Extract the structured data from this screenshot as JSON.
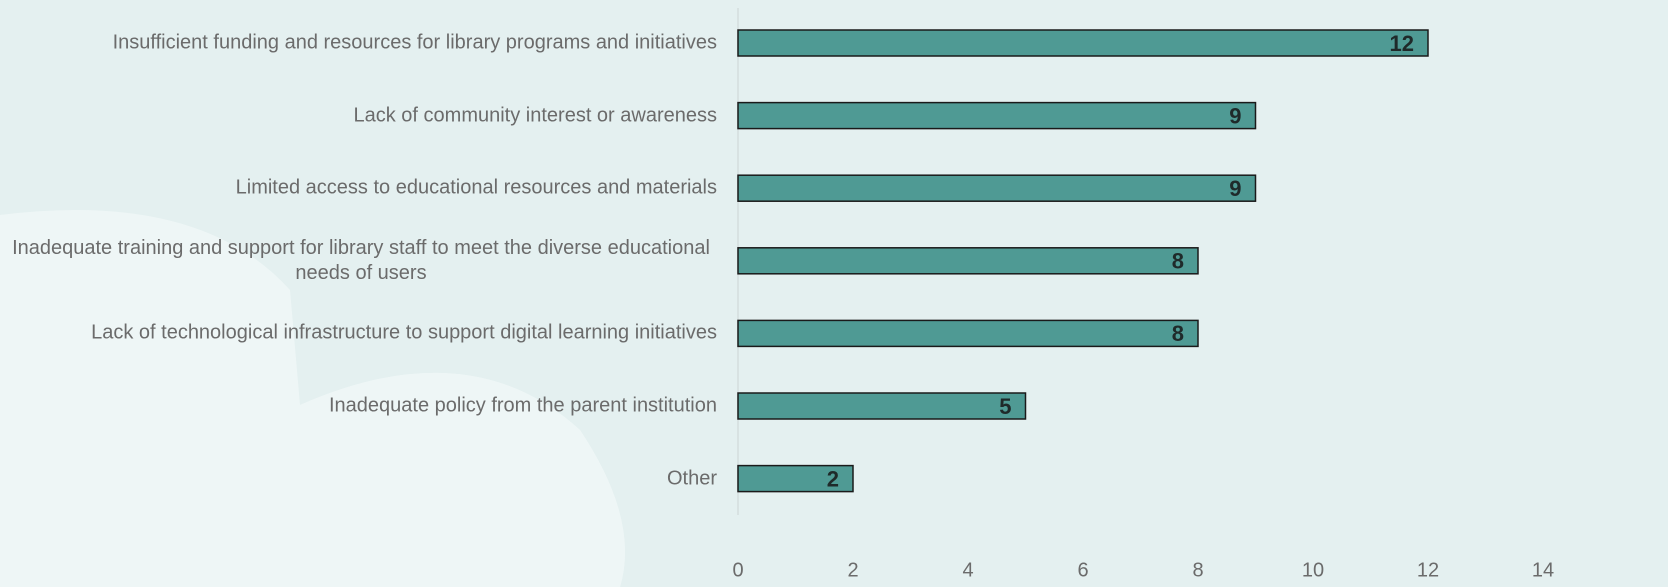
{
  "chart_data": {
    "type": "barh",
    "categories": [
      "Insufficient funding and resources for library programs and initiatives",
      "Lack of community interest or awareness",
      "Limited access to educational resources and materials",
      "Inadequate training and support for library staff to meet the diverse educational needs of users",
      "Lack of technological infrastructure to support digital learning initiatives",
      "Inadequate policy from the parent institution",
      "Other"
    ],
    "values": [
      12,
      9,
      9,
      8,
      8,
      5,
      2
    ],
    "color": "#4f9a94",
    "xlim": [
      0,
      14
    ],
    "xticks": [
      0,
      2,
      4,
      6,
      8,
      10,
      12,
      14
    ]
  }
}
